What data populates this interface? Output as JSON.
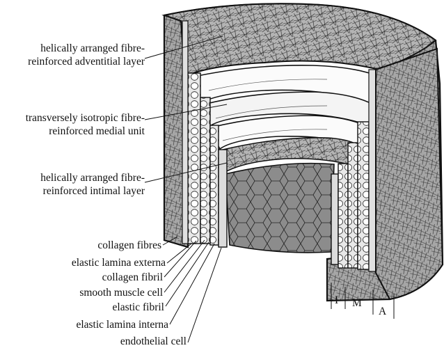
{
  "layer_labels": {
    "adventitia_line1": "helically arranged fibre-",
    "adventitia_line2": "reinforced adventitial layer",
    "media_line1": "transversely isotropic fibre-",
    "media_line2": "reinforced medial unit",
    "intima_line1": "helically arranged fibre-",
    "intima_line2": "reinforced intimal layer"
  },
  "component_labels": [
    "collagen fibres",
    "elastic lamina externa",
    "collagen fibril",
    "smooth muscle cell",
    "elastic fibril",
    "elastic lamina interna",
    "endothelial cell"
  ],
  "axis_labels": {
    "intima": "I",
    "media": "M",
    "adventitia": "A"
  },
  "colors": {
    "adventitia_fill": "#9a9a9a",
    "lining_fill": "#bdbdbd",
    "line": "#111111"
  }
}
